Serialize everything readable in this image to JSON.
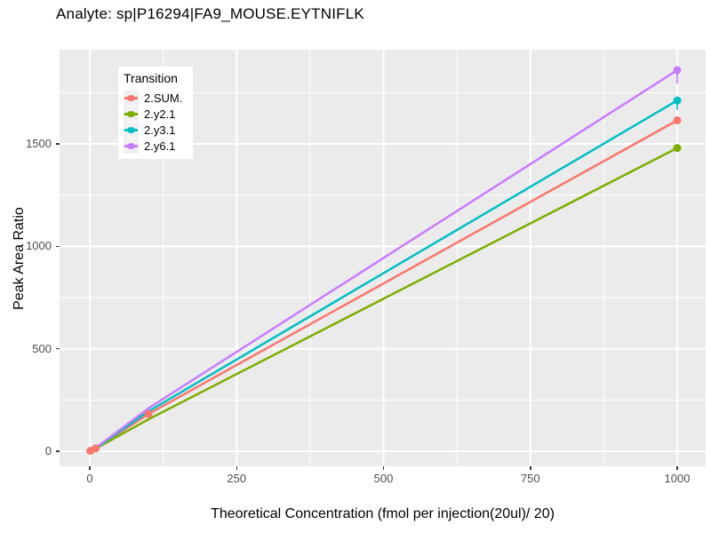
{
  "title": "Analyte: sp|P16294|FA9_MOUSE.EYTNIFLK",
  "chart_data": {
    "type": "line",
    "title": "Analyte: sp|P16294|FA9_MOUSE.EYTNIFLK",
    "xlabel": "Theoretical Concentration (fmol per injection(20ul)/ 20)",
    "ylabel": "Peak Area Ratio",
    "xlim": [
      -51,
      1048
    ],
    "ylim": [
      -74,
      1960
    ],
    "x_ticks": [
      0,
      250,
      500,
      750,
      1000
    ],
    "x_minor_ticks": [
      125,
      375,
      625,
      875
    ],
    "y_ticks": [
      0,
      500,
      1000,
      1500
    ],
    "y_minor_ticks": [
      250,
      750,
      1250,
      1750
    ],
    "grid": "white major and minor gridlines on gray panel",
    "legend": {
      "title": "Transition",
      "position": "inside-top-left"
    },
    "x": [
      1,
      10,
      100,
      1000
    ],
    "series": [
      {
        "name": "2.SUM.",
        "color": "#F8766D",
        "values": [
          2,
          14,
          182,
          1615
        ],
        "marker_indices": [
          0,
          1,
          2,
          3
        ],
        "endpoint_error_below": 0
      },
      {
        "name": "2.y2.1",
        "color": "#7CAE00",
        "values": [
          2,
          13,
          156,
          1480
        ],
        "marker_indices": [
          3
        ],
        "endpoint_error_below": 0
      },
      {
        "name": "2.y3.1",
        "color": "#00BFC4",
        "values": [
          2,
          15,
          195,
          1712
        ],
        "marker_indices": [
          3
        ],
        "endpoint_error_below": 45
      },
      {
        "name": "2.y6.1",
        "color": "#C77CFF",
        "values": [
          2,
          16,
          210,
          1860
        ],
        "marker_indices": [
          3
        ],
        "endpoint_error_below": 65
      }
    ]
  },
  "colors": {
    "page_background": "#FFFFFF",
    "panel_background": "#EBEBEB",
    "gridline": "#FFFFFF",
    "tick_label": "#4D4D4D",
    "tick_mark": "#333333",
    "text": "#000000",
    "legend_background": "#FFFFFF",
    "legend_key_background": "#F0F0F0"
  }
}
